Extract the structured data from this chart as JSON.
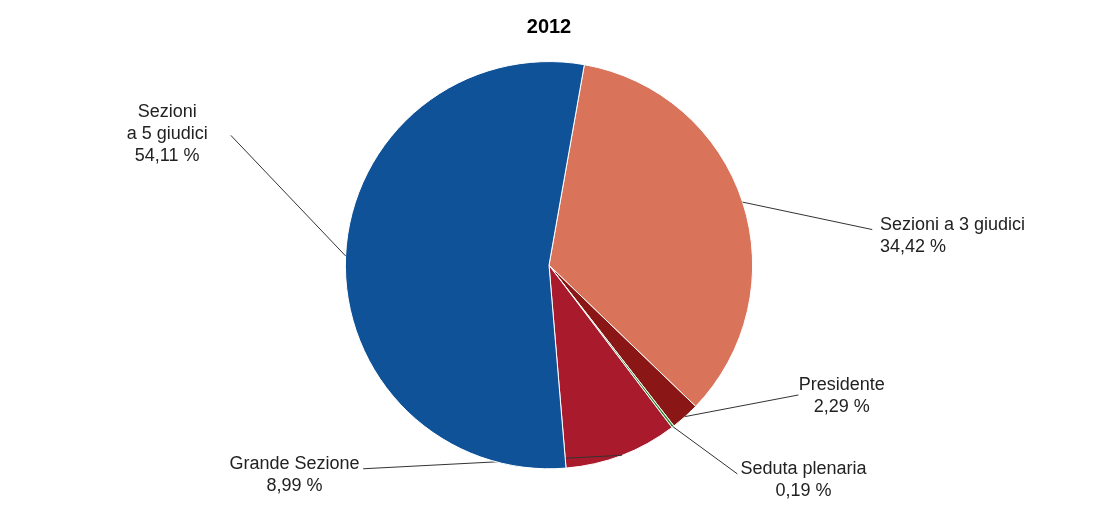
{
  "chart_data": {
    "type": "pie",
    "title": "2012",
    "categories": [
      "Sezioni a 3 giudici",
      "Presidente",
      "Seduta plenaria",
      "Grande Sezione",
      "Sezioni a 5 giudici"
    ],
    "values": [
      34.42,
      2.29,
      0.19,
      8.99,
      54.11
    ],
    "colors": [
      "#d9745a",
      "#8b1616",
      "#2e8b2e",
      "#a91b2c",
      "#0f5298"
    ],
    "value_labels": [
      "34,42 %",
      "2,29 %",
      "0,19 %",
      "8,99 %",
      "54,11 %"
    ]
  }
}
